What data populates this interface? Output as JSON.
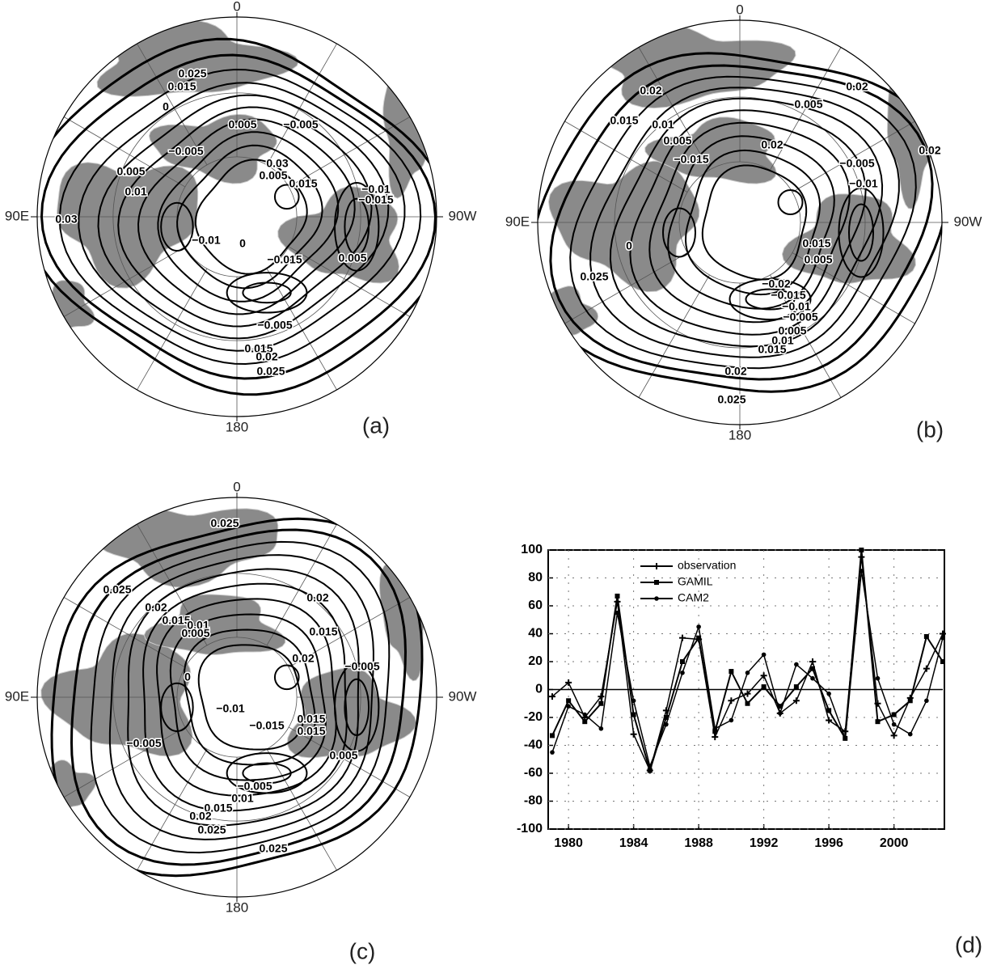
{
  "maps": [
    {
      "panel_label": "(a)",
      "meridian_labels": [
        "0",
        "90E",
        "90W",
        "180"
      ],
      "contour_labels": [
        "0.03",
        "0.025",
        "0.015",
        "0",
        "0.005",
        "−0.005",
        "−0.005",
        "0.005",
        "0.01",
        "0.03",
        "−0.01",
        "0",
        "0.005",
        "0.015",
        "−0.01",
        "−0.015",
        "−0.015",
        "0.005",
        "−0.005",
        "0.015",
        "0.02",
        "0.025"
      ]
    },
    {
      "panel_label": "(b)",
      "meridian_labels": [
        "0",
        "90E",
        "90W",
        "180"
      ],
      "contour_labels": [
        "0.02",
        "0.02",
        "0.015",
        "0.01",
        "0.005",
        "0.005",
        "−0.015",
        "0.02",
        "−0.005",
        "−0.01",
        "0.02",
        "0",
        "0.025",
        "0.015",
        "0.005",
        "−0.02",
        "−0.015",
        "−0.01",
        "−0.005",
        "0.005",
        "0.01",
        "0.015",
        "0.02",
        "0.025"
      ]
    },
    {
      "panel_label": "(c)",
      "meridian_labels": [
        "0",
        "90E",
        "90W",
        "180"
      ],
      "contour_labels": [
        "0.025",
        "0.025",
        "0.02",
        "0.015",
        "0.01",
        "0.005",
        "0.02",
        "0.015",
        "0",
        "0.02",
        "−0.005",
        "−0.01",
        "−0.015",
        "0.015",
        "0.015",
        "−0.005",
        "0.005",
        "−0.005",
        "0.01",
        "0.015",
        "0.02",
        "0.025",
        "0.025"
      ]
    }
  ],
  "chart_data": {
    "type": "line",
    "panel_label": "(d)",
    "x": [
      1979,
      1980,
      1981,
      1982,
      1983,
      1984,
      1985,
      1986,
      1987,
      1988,
      1989,
      1990,
      1991,
      1992,
      1993,
      1994,
      1995,
      1996,
      1997,
      1998,
      1999,
      2000,
      2001,
      2002,
      2003
    ],
    "series": [
      {
        "name": "observation",
        "color": "#000000",
        "marker": "plus",
        "values": [
          -5,
          5,
          -20,
          -5,
          63,
          -32,
          -58,
          -15,
          37,
          36,
          -34,
          -8,
          -3,
          10,
          -17,
          -8,
          20,
          -22,
          -30,
          95,
          -10,
          -33,
          -6,
          15,
          40
        ]
      },
      {
        "name": "GAMIL",
        "color": "#000000",
        "marker": "square",
        "values": [
          -33,
          -8,
          -23,
          -10,
          67,
          -18,
          -58,
          -20,
          20,
          37,
          -30,
          13,
          -10,
          2,
          -12,
          2,
          15,
          -15,
          -35,
          100,
          -23,
          -18,
          -8,
          38,
          20
        ]
      },
      {
        "name": "CAM2",
        "color": "#000000",
        "marker": "circle",
        "values": [
          -45,
          -12,
          -18,
          -28,
          55,
          -8,
          -55,
          -25,
          12,
          45,
          -28,
          -22,
          12,
          25,
          -17,
          18,
          8,
          -3,
          -35,
          85,
          8,
          -25,
          -32,
          -8,
          37
        ]
      }
    ],
    "xlim": [
      1979,
      2003
    ],
    "xticks": [
      1980,
      1984,
      1988,
      1992,
      1996,
      2000
    ],
    "ylim": [
      -100,
      100
    ],
    "yticks": [
      -100,
      -80,
      -60,
      -40,
      -20,
      0,
      20,
      40,
      60,
      80,
      100
    ],
    "grid": true
  }
}
